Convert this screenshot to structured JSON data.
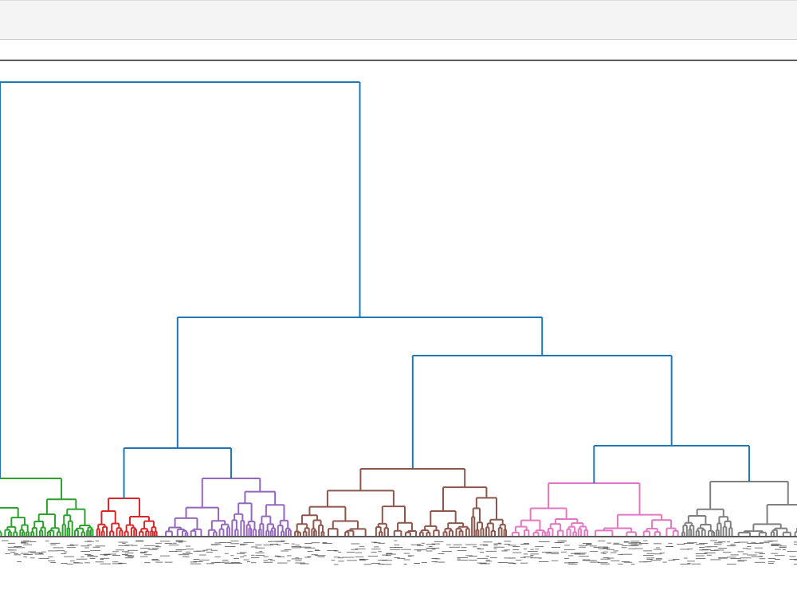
{
  "clusters": [
    {
      "color": "#2ca02c"
    },
    {
      "color": "#d62728"
    },
    {
      "color": "#9467bd"
    },
    {
      "color": "#8c564b"
    },
    {
      "color": "#e377c2"
    },
    {
      "color": "#7f7f7f"
    }
  ],
  "link_color": "#1f77b4"
}
